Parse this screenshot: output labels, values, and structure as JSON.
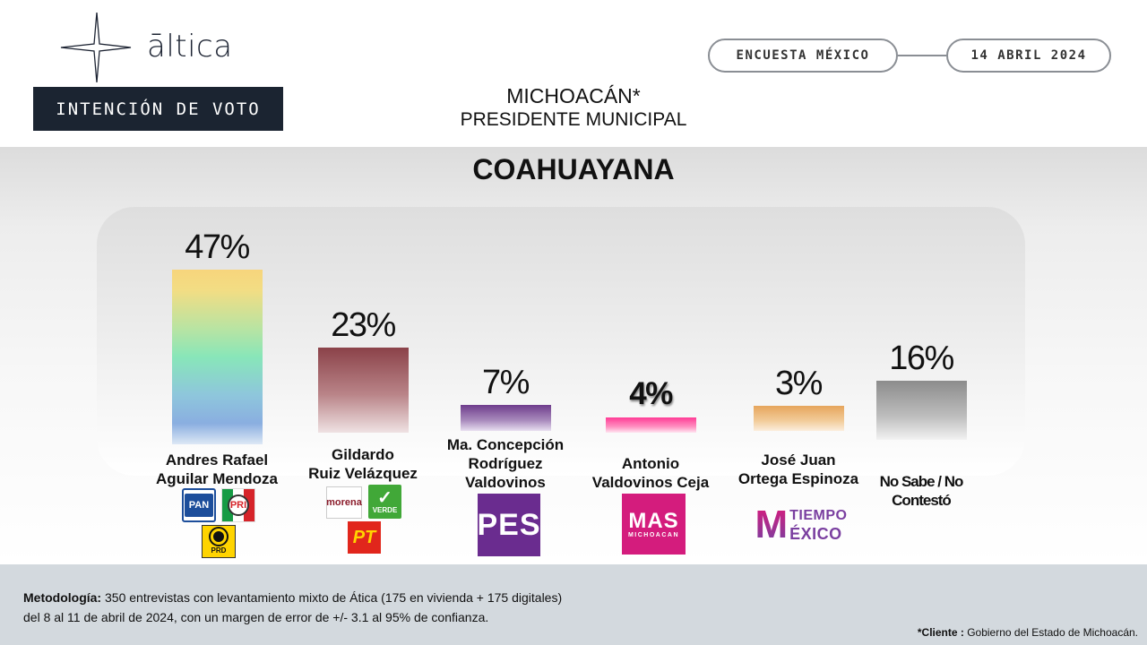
{
  "header": {
    "brand": "āltica",
    "section_label": "INTENCIÓN DE VOTO",
    "survey_label": "ENCUESTA MÉXICO",
    "date_label": "14 ABRIL 2024",
    "title_line1": "MICHOACÁN*",
    "title_line2": "PRESIDENTE MUNICIPAL"
  },
  "chart_data": {
    "type": "bar",
    "title": "COAHUAYANA",
    "categories": [
      "Andres Rafael Aguilar Mendoza",
      "Gildardo Ruiz Velázquez",
      "Ma. Concepción Rodríguez Valdovinos",
      "Antonio Valdovinos Ceja",
      "José Juan Ortega Espinoza",
      "No Sabe / No Contestó"
    ],
    "values": [
      47,
      23,
      7,
      4,
      3,
      16
    ],
    "value_labels": [
      "47%",
      "23%",
      "7%",
      "4%",
      "3%",
      "16%"
    ],
    "candidate_lines": [
      [
        "Andres Rafael",
        "Aguilar Mendoza"
      ],
      [
        "Gildardo",
        "Ruiz Velázquez"
      ],
      [
        "Ma. Concepción",
        "Rodríguez",
        "Valdovinos"
      ],
      [
        "Antonio",
        "Valdovinos Ceja"
      ],
      [
        "José Juan",
        "Ortega Espinoza"
      ],
      [
        "No Sabe / No",
        "Contestó"
      ]
    ],
    "parties": [
      [
        "PAN",
        "PRI",
        "PRD"
      ],
      [
        "morena",
        "VERDE",
        "PT"
      ],
      [
        "PES"
      ],
      [
        "MAS MICHOACÁN"
      ],
      [
        "TIEMPO MÉXICO"
      ],
      []
    ],
    "ylim": [
      0,
      47
    ],
    "grid": false,
    "legend": "none"
  },
  "logos": {
    "pan": "PAN",
    "pri": "PRI",
    "prd": "PRD",
    "morena": "morena",
    "verde": "VERDE",
    "pt": "PT",
    "pes": "PES",
    "mas_main": "MAS",
    "mas_sub": "MICHOACAN",
    "tiempo_m": "M",
    "tiempo_top": "TIEMPO",
    "tiempo_bottom": "ÉXICO"
  },
  "footer": {
    "method_label": "Metodología:",
    "method_line1": " 350 entrevistas con levantamiento mixto de Ática (175 en vivienda + 175 digitales)",
    "method_line2": "del 8 al 11 de abril de 2024, con un margen de error de +/- 3.1 al 95% de confianza.",
    "client_label": "*Cliente :",
    "client_value": " Gobierno del Estado de Michoacán."
  },
  "colors": {
    "dark_box": "#1b2431",
    "footer_bg": "#d3d9de",
    "bar_2": "#8b4249",
    "bar_3": "#6e3c8c",
    "bar_4": "#ff3c96",
    "bar_5": "#e6a55c",
    "bar_6": "#8c8c8c"
  }
}
